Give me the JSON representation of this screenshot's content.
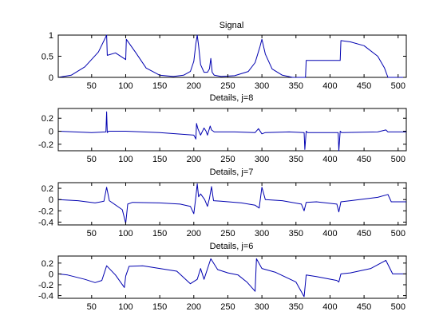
{
  "chart_data": [
    {
      "type": "line",
      "title": "Signal",
      "xlim": [
        1,
        512
      ],
      "ylim": [
        0,
        1
      ],
      "xticks": [
        50,
        100,
        150,
        200,
        250,
        300,
        350,
        400,
        450,
        500
      ],
      "yticks": [
        0,
        0.5,
        1
      ],
      "ytick_labels": [
        "0",
        "0.5",
        "1"
      ],
      "color": "#0000b0",
      "x": [
        1,
        20,
        40,
        60,
        72,
        73,
        85,
        100,
        101,
        115,
        130,
        150,
        170,
        185,
        195,
        200,
        203,
        205,
        207,
        210,
        215,
        220,
        223,
        225,
        227,
        230,
        240,
        260,
        280,
        290,
        297,
        300,
        305,
        315,
        330,
        345,
        360,
        364,
        365,
        400,
        415,
        416,
        430,
        450,
        470,
        480,
        485,
        512
      ],
      "y": [
        0,
        0.05,
        0.25,
        0.6,
        1.0,
        0.52,
        0.58,
        0.42,
        0.9,
        0.58,
        0.22,
        0.05,
        0.02,
        0.05,
        0.14,
        0.38,
        0.8,
        1.0,
        0.75,
        0.3,
        0.12,
        0.12,
        0.2,
        0.45,
        0.12,
        0.05,
        0.02,
        0.04,
        0.14,
        0.35,
        0.72,
        0.9,
        0.55,
        0.2,
        0.05,
        0.0,
        0.0,
        0.0,
        0.4,
        0.4,
        0.4,
        0.87,
        0.84,
        0.75,
        0.5,
        0.22,
        0.0,
        0.0
      ]
    },
    {
      "type": "line",
      "title": "Details, j=8",
      "xlim": [
        1,
        512
      ],
      "ylim": [
        -0.3,
        0.35
      ],
      "xticks": [
        50,
        100,
        150,
        200,
        250,
        300,
        350,
        400,
        450,
        500
      ],
      "yticks": [
        -0.2,
        0,
        0.2
      ],
      "ytick_labels": [
        "-0.2",
        "0",
        "0.2"
      ],
      "color": "#0000b0",
      "x": [
        1,
        50,
        71,
        72,
        73,
        75,
        100,
        150,
        200,
        203,
        204,
        206,
        210,
        215,
        218,
        220,
        224,
        226,
        230,
        260,
        290,
        295,
        300,
        305,
        340,
        362,
        363,
        365,
        367,
        400,
        412,
        413,
        415,
        417,
        470,
        482,
        485,
        512
      ],
      "y": [
        0,
        -0.02,
        -0.01,
        0.3,
        -0.02,
        0.0,
        0.0,
        -0.02,
        -0.06,
        -0.12,
        0.12,
        0.04,
        -0.06,
        0.05,
        0.0,
        -0.06,
        0.08,
        0.02,
        -0.01,
        -0.01,
        -0.02,
        0.04,
        -0.04,
        -0.02,
        -0.01,
        -0.02,
        -0.28,
        0.0,
        -0.02,
        -0.02,
        -0.02,
        -0.3,
        0.0,
        -0.02,
        -0.01,
        0.02,
        -0.01,
        -0.01
      ]
    },
    {
      "type": "line",
      "title": "Details, j=7",
      "xlim": [
        1,
        512
      ],
      "ylim": [
        -0.45,
        0.3
      ],
      "xticks": [
        50,
        100,
        150,
        200,
        250,
        300,
        350,
        400,
        450,
        500
      ],
      "yticks": [
        -0.4,
        -0.2,
        0,
        0.2
      ],
      "ytick_labels": [
        "-0.4",
        "-0.2",
        "0",
        "0.2"
      ],
      "color": "#0000b0",
      "x": [
        1,
        30,
        55,
        68,
        72,
        76,
        95,
        100,
        103,
        110,
        150,
        180,
        195,
        200,
        203,
        205,
        207,
        210,
        216,
        220,
        223,
        226,
        229,
        240,
        270,
        290,
        296,
        300,
        305,
        330,
        358,
        362,
        365,
        380,
        410,
        413,
        416,
        430,
        470,
        485,
        490,
        512
      ],
      "y": [
        0,
        -0.02,
        -0.06,
        -0.03,
        0.22,
        -0.02,
        -0.18,
        -0.42,
        -0.08,
        -0.05,
        -0.06,
        -0.08,
        -0.12,
        -0.25,
        0.05,
        0.28,
        0.05,
        0.1,
        0.0,
        -0.12,
        0.02,
        0.23,
        -0.02,
        -0.03,
        -0.06,
        -0.1,
        -0.15,
        0.22,
        0.0,
        -0.02,
        -0.08,
        -0.2,
        -0.05,
        -0.04,
        -0.08,
        -0.22,
        -0.04,
        -0.02,
        0.04,
        0.09,
        -0.04,
        -0.04
      ]
    },
    {
      "type": "line",
      "title": "Details, j=6",
      "xlim": [
        1,
        512
      ],
      "ylim": [
        -0.45,
        0.33
      ],
      "xticks": [
        50,
        100,
        150,
        200,
        250,
        300,
        350,
        400,
        450,
        500
      ],
      "yticks": [
        -0.4,
        -0.2,
        0,
        0.2
      ],
      "ytick_labels": [
        "-0.4",
        "-0.2",
        "0",
        "0.2"
      ],
      "color": "#0000b0",
      "x": [
        1,
        15,
        40,
        55,
        65,
        72,
        85,
        98,
        100,
        105,
        125,
        150,
        175,
        195,
        205,
        210,
        215,
        225,
        235,
        250,
        265,
        278,
        290,
        292,
        300,
        320,
        350,
        362,
        365,
        380,
        410,
        413,
        416,
        430,
        460,
        482,
        492,
        512
      ],
      "y": [
        0.0,
        -0.02,
        -0.1,
        -0.16,
        -0.12,
        0.15,
        -0.02,
        -0.25,
        -0.04,
        0.14,
        0.15,
        0.1,
        0.05,
        -0.18,
        -0.1,
        0.1,
        -0.1,
        0.28,
        0.08,
        0.02,
        -0.02,
        -0.15,
        -0.32,
        0.28,
        0.1,
        0.03,
        -0.15,
        -0.42,
        -0.02,
        -0.05,
        -0.12,
        -0.15,
        0.0,
        0.02,
        0.1,
        0.25,
        0.0,
        0.0
      ]
    }
  ]
}
